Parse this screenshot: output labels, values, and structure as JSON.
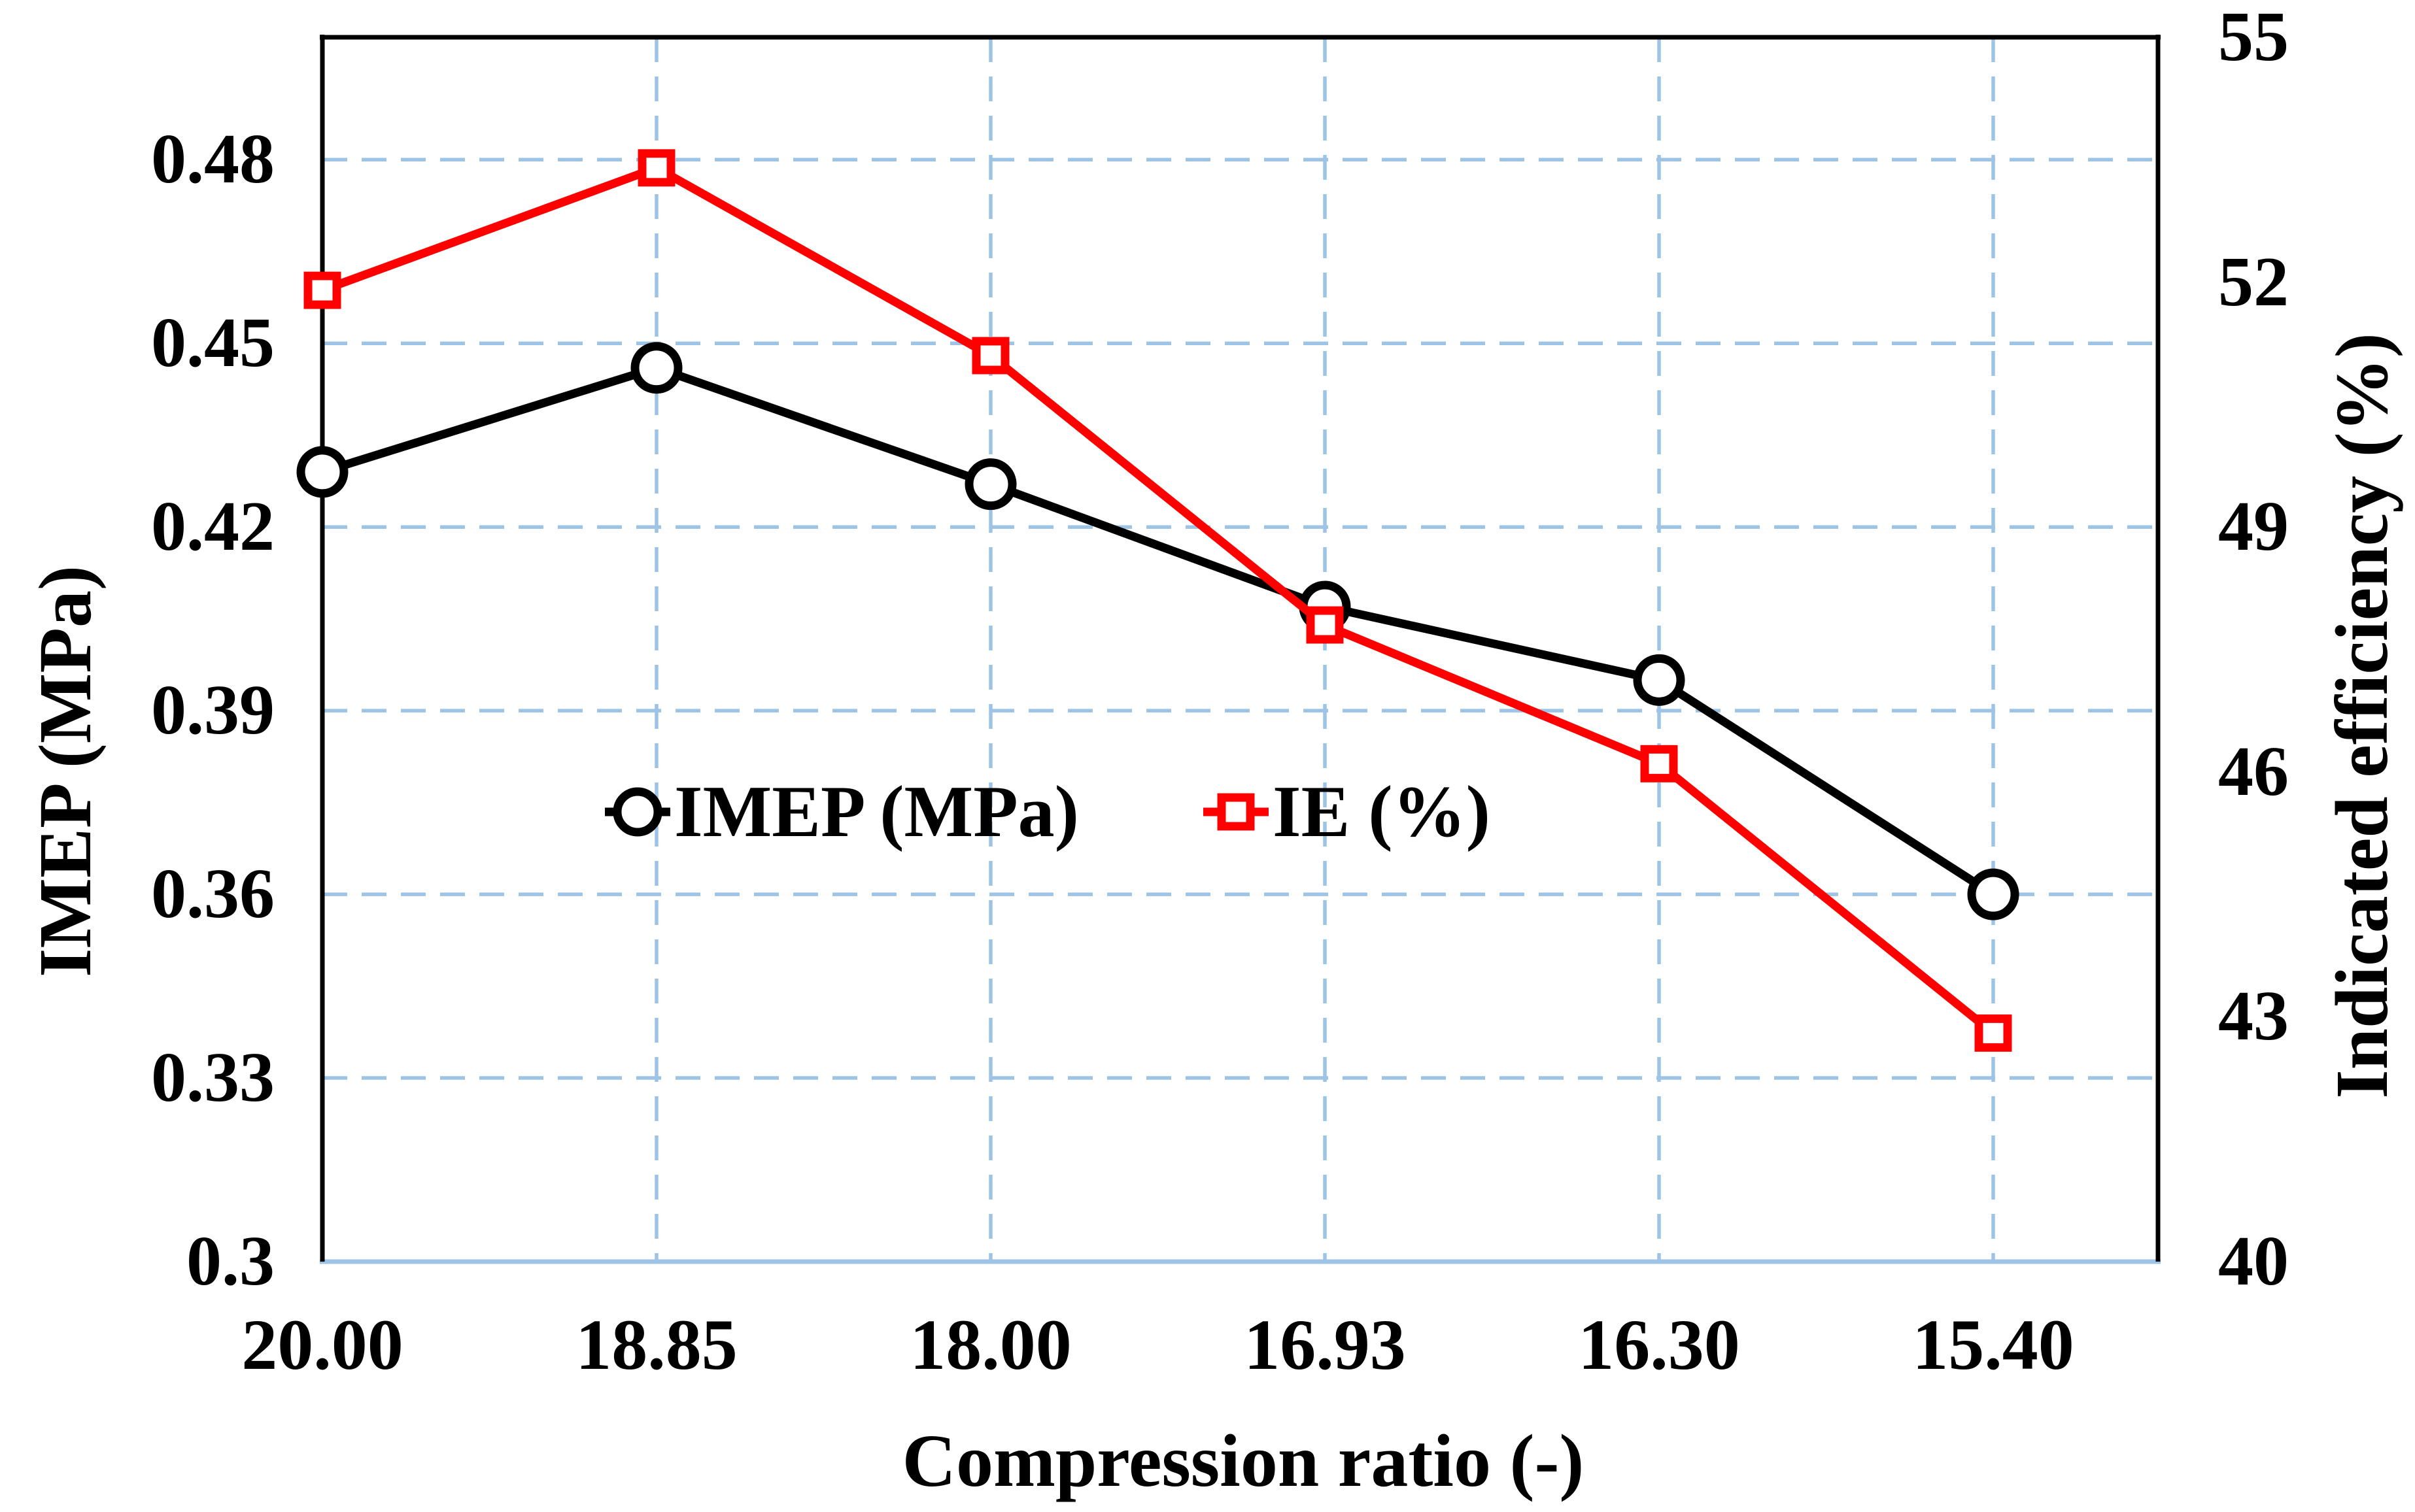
{
  "chart_data": {
    "type": "line",
    "title": "",
    "categories": [
      "20.00",
      "18.85",
      "18.00",
      "16.93",
      "16.30",
      "15.40"
    ],
    "x_axis_label": "Compression ratio (-)",
    "y_left": {
      "label": "IMEP (MPa)",
      "min": 0.3,
      "max": 0.5,
      "major": 0.03,
      "ticks": [
        "0.48",
        "0.45",
        "0.42",
        "0.39",
        "0.36",
        "0.33",
        "0.3"
      ]
    },
    "y_right": {
      "label": "Indicated efficiency (%)",
      "min": 40,
      "max": 55,
      "major": 3,
      "ticks": [
        "55",
        "52",
        "49",
        "46",
        "43",
        "40"
      ]
    },
    "series": [
      {
        "name": "IMEP (MPa)",
        "axis": "left",
        "color": "#000000",
        "marker": "circle",
        "values": [
          0.429,
          0.446,
          0.427,
          0.407,
          0.395,
          0.36
        ]
      },
      {
        "name": "IE (%)",
        "axis": "right",
        "color": "#FF0000",
        "marker": "square",
        "values": [
          51.9,
          53.4,
          51.1,
          47.8,
          46.1,
          42.8
        ]
      }
    ],
    "grid": {
      "color": "#9DC3E6",
      "style": "dashed",
      "bottom_axis_color": "#9DC3E6"
    },
    "legend": {
      "position": "inside-center",
      "entries": [
        "IMEP (MPa)",
        "IE (%)"
      ]
    }
  }
}
